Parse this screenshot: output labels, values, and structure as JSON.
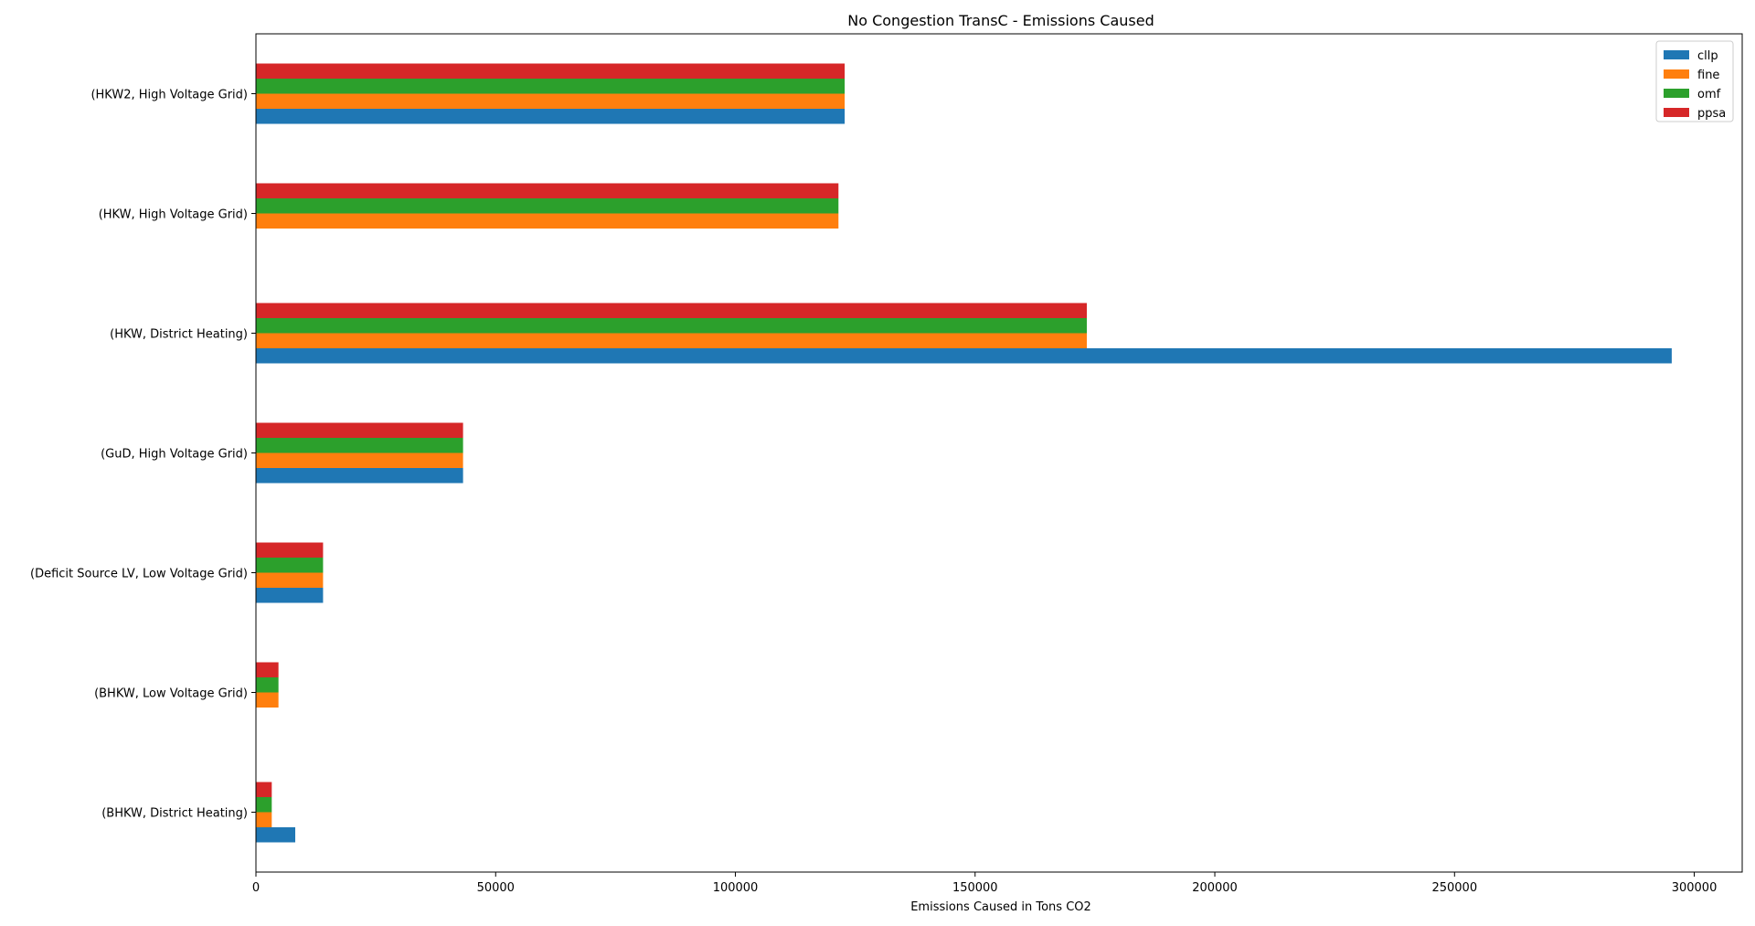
{
  "chart_data": {
    "type": "bar",
    "orientation": "horizontal",
    "title": "No Congestion TransC - Emissions Caused",
    "xlabel": "Emissions Caused in Tons CO2",
    "ylabel": "",
    "xlim": [
      0,
      310000
    ],
    "xticks": [
      0,
      50000,
      100000,
      150000,
      200000,
      250000,
      300000
    ],
    "xtick_labels": [
      "0",
      "50000",
      "100000",
      "150000",
      "200000",
      "250000",
      "300000"
    ],
    "categories": [
      "(BHKW, District Heating)",
      "(BHKW, Low Voltage Grid)",
      "(Deficit Source LV, Low Voltage Grid)",
      "(GuD, High Voltage Grid)",
      "(HKW, District Heating)",
      "(HKW, High Voltage Grid)",
      "(HKW2, High Voltage Grid)"
    ],
    "series": [
      {
        "name": "cllp",
        "color": "#1f77b4",
        "values": [
          8200,
          0,
          14000,
          43200,
          295300,
          0,
          122800
        ]
      },
      {
        "name": "fine",
        "color": "#ff7f0e",
        "values": [
          3300,
          4700,
          14000,
          43200,
          173300,
          121500,
          122800
        ]
      },
      {
        "name": "omf",
        "color": "#2ca02c",
        "values": [
          3300,
          4700,
          14000,
          43200,
          173300,
          121500,
          122800
        ]
      },
      {
        "name": "ppsa",
        "color": "#d62728",
        "values": [
          3300,
          4700,
          14000,
          43200,
          173300,
          121500,
          122800
        ]
      }
    ],
    "grid": false,
    "legend_position": "top-right"
  }
}
